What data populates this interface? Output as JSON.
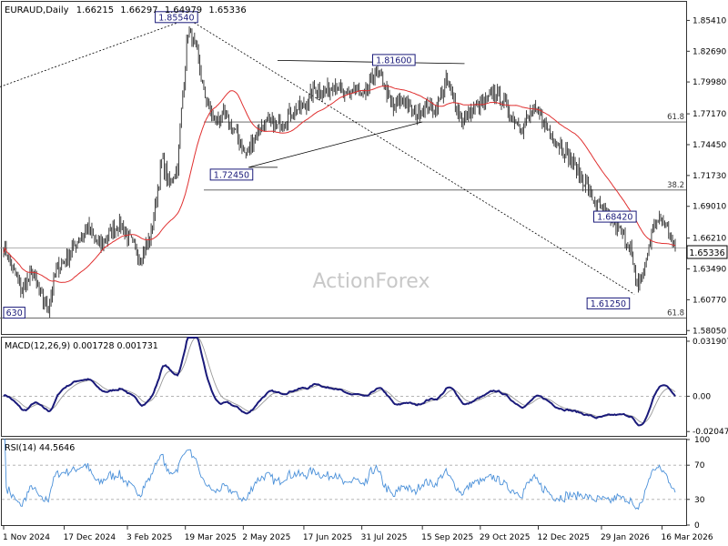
{
  "chart_data": [
    {
      "type": "candlestick",
      "panel": "main",
      "title": "EURAUD,Daily",
      "ohlc": {
        "open": "1.66215",
        "high": "1.66297",
        "low": "1.64979",
        "close": "1.65336"
      },
      "watermark": "ActionForex",
      "ylim": [
        1.5775,
        1.8705
      ],
      "y_ticks": [
        "1.85410",
        "1.82690",
        "1.79980",
        "1.77170",
        "1.74450",
        "1.71730",
        "1.69010",
        "1.66210",
        "1.63490",
        "1.60770",
        "1.58050"
      ],
      "current_price_label": "1.65336",
      "annotations": [
        {
          "label": "1.85540",
          "day": 140,
          "price": 1.8554
        },
        {
          "label": "1.81600",
          "day": 283,
          "price": 1.816
        },
        {
          "label": "1.72450",
          "day": 186,
          "price": 1.7245
        },
        {
          "label": "1.68420",
          "day": 491,
          "price": 1.6842
        },
        {
          "label": "1.61250",
          "day": 479,
          "price": 1.6125
        },
        {
          "label": "630",
          "day": 0,
          "price": 1.5963
        }
      ],
      "fib_levels": [
        {
          "label": "61.8",
          "price": 1.7645
        },
        {
          "label": "38.2",
          "price": 1.7045
        },
        {
          "label": "61.8",
          "price": 1.5915
        }
      ],
      "x_tick_labels": [
        "1 Nov 2024",
        "17 Dec 2024",
        "3 Feb 2025",
        "19 Mar 2025",
        "2 May 2025",
        "17 Jun 2025",
        "31 Jul 2025",
        "15 Sep 2025",
        "29 Oct 2025",
        "12 Dec 2025",
        "29 Jan 2026",
        "16 Mar 2026"
      ],
      "x_tick_days": [
        0,
        46,
        94,
        138,
        182,
        228,
        272,
        318,
        362,
        406,
        454,
        500
      ],
      "anchors": [
        [
          0,
          1.655
        ],
        [
          6,
          1.638
        ],
        [
          14,
          1.615
        ],
        [
          22,
          1.632
        ],
        [
          28,
          1.61
        ],
        [
          34,
          1.6
        ],
        [
          40,
          1.635
        ],
        [
          48,
          1.645
        ],
        [
          56,
          1.66
        ],
        [
          64,
          1.67
        ],
        [
          72,
          1.655
        ],
        [
          80,
          1.665
        ],
        [
          88,
          1.675
        ],
        [
          96,
          1.66
        ],
        [
          104,
          1.645
        ],
        [
          112,
          1.665
        ],
        [
          120,
          1.73
        ],
        [
          126,
          1.71
        ],
        [
          132,
          1.725
        ],
        [
          136,
          1.79
        ],
        [
          140,
          1.845
        ],
        [
          146,
          1.83
        ],
        [
          152,
          1.79
        ],
        [
          160,
          1.765
        ],
        [
          168,
          1.77
        ],
        [
          176,
          1.755
        ],
        [
          184,
          1.735
        ],
        [
          192,
          1.755
        ],
        [
          200,
          1.765
        ],
        [
          208,
          1.76
        ],
        [
          216,
          1.77
        ],
        [
          222,
          1.775
        ],
        [
          230,
          1.78
        ],
        [
          236,
          1.795
        ],
        [
          244,
          1.79
        ],
        [
          252,
          1.8
        ],
        [
          260,
          1.785
        ],
        [
          266,
          1.795
        ],
        [
          274,
          1.785
        ],
        [
          282,
          1.81
        ],
        [
          288,
          1.8
        ],
        [
          296,
          1.775
        ],
        [
          304,
          1.785
        ],
        [
          312,
          1.77
        ],
        [
          320,
          1.78
        ],
        [
          328,
          1.775
        ],
        [
          336,
          1.8
        ],
        [
          342,
          1.785
        ],
        [
          348,
          1.765
        ],
        [
          356,
          1.775
        ],
        [
          364,
          1.78
        ],
        [
          372,
          1.79
        ],
        [
          378,
          1.785
        ],
        [
          386,
          1.77
        ],
        [
          394,
          1.76
        ],
        [
          402,
          1.775
        ],
        [
          410,
          1.765
        ],
        [
          418,
          1.75
        ],
        [
          426,
          1.74
        ],
        [
          434,
          1.725
        ],
        [
          442,
          1.71
        ],
        [
          448,
          1.695
        ],
        [
          456,
          1.685
        ],
        [
          464,
          1.675
        ],
        [
          470,
          1.665
        ],
        [
          476,
          1.655
        ],
        [
          480,
          1.62
        ],
        [
          486,
          1.63
        ],
        [
          490,
          1.655
        ],
        [
          494,
          1.675
        ],
        [
          500,
          1.678
        ],
        [
          506,
          1.668
        ],
        [
          510,
          1.653
        ]
      ],
      "last_day": 510
    },
    {
      "type": "line",
      "panel": "macd",
      "title": "MACD(12,26,9) 0.001728 0.001731",
      "y_ticks": [
        "0.031907",
        "0.00",
        "-0.020479"
      ],
      "ylim": [
        -0.023,
        0.034
      ]
    },
    {
      "type": "line",
      "panel": "rsi",
      "title": "RSI(14) 44.5646",
      "y_ticks": [
        "100",
        "70",
        "30",
        "0"
      ],
      "ylim": [
        0,
        100
      ],
      "levels": [
        70,
        30
      ]
    }
  ],
  "colors": {
    "candle": "#2a2a2a",
    "ma": "#e03030",
    "macd": "#1a1a7a",
    "signal": "#999999",
    "rsi": "#4a90d9",
    "trend": "#000000",
    "grid": "#aaaaaa",
    "watermark": "#c8c8c8"
  }
}
